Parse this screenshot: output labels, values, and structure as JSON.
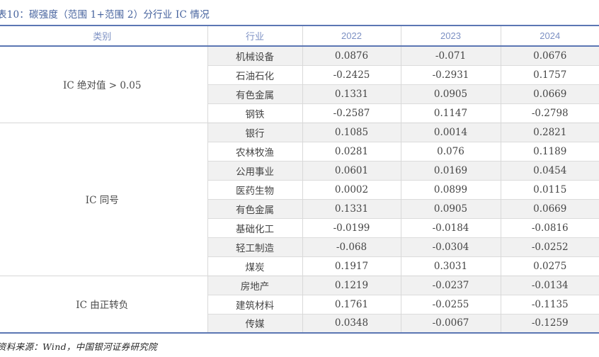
{
  "title": "表10：碳强度（范围 1+范围 2）分行业 IC 情况",
  "source_note": "资料来源：Wind，中国银河证券研究院",
  "colors": {
    "accent_blue_border": "#5b76b3",
    "title_blue": "#44619d",
    "header_text_blue": "#7c90c3",
    "row_stripe": "#f1f1f1",
    "body_text": "#454545"
  },
  "table": {
    "headers": [
      "类别",
      "行业",
      "2022",
      "2023",
      "2024"
    ],
    "groups": [
      {
        "category": "IC 绝对值 > 0.05",
        "rows": [
          {
            "industry": "机械设备",
            "values": [
              "0.0876",
              "-0.071",
              "0.0676"
            ]
          },
          {
            "industry": "石油石化",
            "values": [
              "-0.2425",
              "-0.2931",
              "0.1757"
            ]
          },
          {
            "industry": "有色金属",
            "values": [
              "0.1331",
              "0.0905",
              "0.0669"
            ]
          },
          {
            "industry": "钢铁",
            "values": [
              "-0.2587",
              "0.1147",
              "-0.2798"
            ]
          }
        ]
      },
      {
        "category": "IC 同号",
        "rows": [
          {
            "industry": "银行",
            "values": [
              "0.1085",
              "0.0014",
              "0.2821"
            ]
          },
          {
            "industry": "农林牧渔",
            "values": [
              "0.0281",
              "0.076",
              "0.1189"
            ]
          },
          {
            "industry": "公用事业",
            "values": [
              "0.0601",
              "0.0169",
              "0.0454"
            ]
          },
          {
            "industry": "医药生物",
            "values": [
              "0.0002",
              "0.0899",
              "0.0115"
            ]
          },
          {
            "industry": "有色金属",
            "values": [
              "0.1331",
              "0.0905",
              "0.0669"
            ]
          },
          {
            "industry": "基础化工",
            "values": [
              "-0.0199",
              "-0.0184",
              "-0.0816"
            ]
          },
          {
            "industry": "轻工制造",
            "values": [
              "-0.068",
              "-0.0304",
              "-0.0252"
            ]
          },
          {
            "industry": "煤炭",
            "values": [
              "0.1917",
              "0.3031",
              "0.0275"
            ]
          }
        ]
      },
      {
        "category": "IC 由正转负",
        "rows": [
          {
            "industry": "房地产",
            "values": [
              "0.1219",
              "-0.0237",
              "-0.0134"
            ]
          },
          {
            "industry": "建筑材料",
            "values": [
              "0.1761",
              "-0.0255",
              "-0.1135"
            ]
          },
          {
            "industry": "传媒",
            "values": [
              "0.0348",
              "-0.0067",
              "-0.1259"
            ]
          }
        ]
      }
    ]
  }
}
